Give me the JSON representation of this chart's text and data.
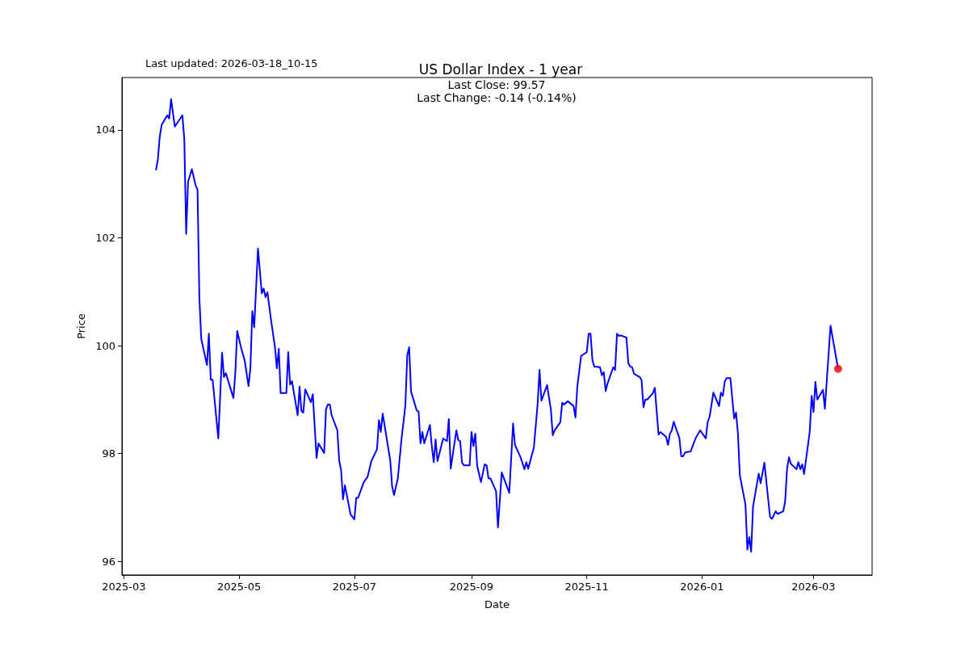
{
  "chart_data": {
    "type": "line",
    "title": "US Dollar Index - 1 year",
    "xlabel": "Date",
    "ylabel": "Price",
    "annotations": [
      "Last updated: 2026-03-18_10-15",
      "Last Close: 99.57",
      "Last Change: -0.14 (-0.14%)"
    ],
    "xlim": [
      "2025-02-28",
      "2026-04-01"
    ],
    "xticks": [
      {
        "value": "2025-03",
        "label": "2025-03"
      },
      {
        "value": "2025-05",
        "label": "2025-05"
      },
      {
        "value": "2025-07",
        "label": "2025-07"
      },
      {
        "value": "2025-09",
        "label": "2025-09"
      },
      {
        "value": "2025-11",
        "label": "2025-11"
      },
      {
        "value": "2026-01",
        "label": "2026-01"
      },
      {
        "value": "2026-03",
        "label": "2026-03"
      }
    ],
    "ylim": [
      95.75,
      104.97
    ],
    "yticks": [
      96,
      98,
      100,
      102,
      104
    ],
    "grid": false,
    "line_style": "solid",
    "series": [
      {
        "color": "#0000ff",
        "x": [
          "2025-03-18",
          "2025-03-19",
          "2025-03-20",
          "2025-03-21",
          "2025-03-24",
          "2025-03-25",
          "2025-03-26",
          "2025-03-28",
          "2025-04-01",
          "2025-04-02",
          "2025-04-03",
          "2025-04-04",
          "2025-04-06",
          "2025-04-08",
          "2025-04-09",
          "2025-04-10",
          "2025-04-11",
          "2025-04-14",
          "2025-04-15",
          "2025-04-16",
          "2025-04-17",
          "2025-04-20",
          "2025-04-22",
          "2025-04-23",
          "2025-04-24",
          "2025-04-28",
          "2025-04-29",
          "2025-04-30",
          "2025-05-02",
          "2025-05-04",
          "2025-05-06",
          "2025-05-07",
          "2025-05-08",
          "2025-05-09",
          "2025-05-11",
          "2025-05-13",
          "2025-05-14",
          "2025-05-15",
          "2025-05-16",
          "2025-05-18",
          "2025-05-20",
          "2025-05-21",
          "2025-05-22",
          "2025-05-23",
          "2025-05-26",
          "2025-05-27",
          "2025-05-28",
          "2025-05-29",
          "2025-06-01",
          "2025-06-02",
          "2025-06-03",
          "2025-06-04",
          "2025-06-05",
          "2025-06-08",
          "2025-06-09",
          "2025-06-11",
          "2025-06-12",
          "2025-06-15",
          "2025-06-16",
          "2025-06-17",
          "2025-06-18",
          "2025-06-19",
          "2025-06-22",
          "2025-06-23",
          "2025-06-24",
          "2025-06-25",
          "2025-06-26",
          "2025-06-29",
          "2025-07-01",
          "2025-07-02",
          "2025-07-03",
          "2025-07-06",
          "2025-07-08",
          "2025-07-10",
          "2025-07-13",
          "2025-07-14",
          "2025-07-15",
          "2025-07-16",
          "2025-07-20",
          "2025-07-21",
          "2025-07-22",
          "2025-07-24",
          "2025-07-26",
          "2025-07-28",
          "2025-07-29",
          "2025-07-30",
          "2025-07-31",
          "2025-08-03",
          "2025-08-04",
          "2025-08-05",
          "2025-08-06",
          "2025-08-07",
          "2025-08-10",
          "2025-08-11",
          "2025-08-12",
          "2025-08-13",
          "2025-08-14",
          "2025-08-17",
          "2025-08-19",
          "2025-08-20",
          "2025-08-21",
          "2025-08-24",
          "2025-08-25",
          "2025-08-26",
          "2025-08-27",
          "2025-08-28",
          "2025-08-31",
          "2025-09-01",
          "2025-09-02",
          "2025-09-03",
          "2025-09-04",
          "2025-09-06",
          "2025-09-08",
          "2025-09-09",
          "2025-09-10",
          "2025-09-11",
          "2025-09-14",
          "2025-09-15",
          "2025-09-17",
          "2025-09-21",
          "2025-09-23",
          "2025-09-24",
          "2025-09-27",
          "2025-09-29",
          "2025-09-30",
          "2025-10-01",
          "2025-10-04",
          "2025-10-06",
          "2025-10-07",
          "2025-10-08",
          "2025-10-11",
          "2025-10-13",
          "2025-10-14",
          "2025-10-15",
          "2025-10-18",
          "2025-10-19",
          "2025-10-20",
          "2025-10-22",
          "2025-10-25",
          "2025-10-26",
          "2025-10-27",
          "2025-10-29",
          "2025-11-01",
          "2025-11-02",
          "2025-11-03",
          "2025-11-04",
          "2025-11-05",
          "2025-11-08",
          "2025-11-09",
          "2025-11-10",
          "2025-11-11",
          "2025-11-12",
          "2025-11-15",
          "2025-11-16",
          "2025-11-17",
          "2025-11-18",
          "2025-11-19",
          "2025-11-22",
          "2025-11-23",
          "2025-11-24",
          "2025-11-25",
          "2025-11-26",
          "2025-11-29",
          "2025-11-30",
          "2025-12-01",
          "2025-12-02",
          "2025-12-03",
          "2025-12-06",
          "2025-12-07",
          "2025-12-09",
          "2025-12-10",
          "2025-12-11",
          "2025-12-13",
          "2025-12-14",
          "2025-12-15",
          "2025-12-16",
          "2025-12-17",
          "2025-12-20",
          "2025-12-21",
          "2025-12-22",
          "2025-12-23",
          "2025-12-26",
          "2025-12-28",
          "2025-12-29",
          "2025-12-31",
          "2026-01-03",
          "2026-01-04",
          "2026-01-05",
          "2026-01-07",
          "2026-01-10",
          "2026-01-11",
          "2026-01-12",
          "2026-01-13",
          "2026-01-14",
          "2026-01-16",
          "2026-01-18",
          "2026-01-19",
          "2026-01-20",
          "2026-01-21",
          "2026-01-24",
          "2026-01-25",
          "2026-01-26",
          "2026-01-27",
          "2026-01-28",
          "2026-01-31",
          "2026-02-01",
          "2026-02-03",
          "2026-02-06",
          "2026-02-07",
          "2026-02-09",
          "2026-02-10",
          "2026-02-13",
          "2026-02-14",
          "2026-02-15",
          "2026-02-16",
          "2026-02-17",
          "2026-02-20",
          "2026-02-21",
          "2026-02-22",
          "2026-02-23",
          "2026-02-24",
          "2026-02-27",
          "2026-02-28",
          "2026-03-01",
          "2026-03-02",
          "2026-03-03",
          "2026-03-06",
          "2026-03-07",
          "2026-03-10",
          "2026-03-14"
        ],
        "values": [
          103.25,
          103.45,
          103.87,
          104.09,
          104.27,
          104.21,
          104.57,
          104.06,
          104.27,
          103.84,
          102.07,
          103.04,
          103.27,
          102.97,
          102.89,
          100.87,
          100.12,
          99.64,
          100.22,
          99.37,
          99.37,
          98.28,
          99.87,
          99.42,
          99.49,
          99.03,
          99.49,
          100.27,
          99.97,
          99.72,
          99.25,
          99.6,
          100.64,
          100.34,
          101.8,
          100.97,
          101.06,
          100.9,
          100.99,
          100.45,
          99.97,
          99.58,
          99.94,
          99.12,
          99.12,
          99.88,
          99.28,
          99.34,
          98.71,
          99.24,
          98.79,
          98.76,
          99.19,
          98.95,
          99.1,
          97.92,
          98.19,
          98.01,
          98.82,
          98.91,
          98.91,
          98.71,
          98.43,
          97.86,
          97.69,
          97.15,
          97.41,
          96.87,
          96.78,
          97.18,
          97.18,
          97.47,
          97.57,
          97.86,
          98.08,
          98.62,
          98.4,
          98.74,
          97.87,
          97.39,
          97.23,
          97.54,
          98.28,
          98.89,
          99.82,
          99.97,
          99.15,
          98.8,
          98.78,
          98.19,
          98.4,
          98.19,
          98.53,
          98.13,
          97.84,
          98.26,
          97.86,
          98.28,
          98.23,
          98.64,
          97.72,
          98.43,
          98.25,
          98.23,
          97.83,
          97.78,
          97.78,
          98.4,
          98.14,
          98.37,
          97.77,
          97.47,
          97.8,
          97.78,
          97.54,
          97.54,
          97.3,
          96.63,
          97.65,
          97.27,
          98.56,
          98.16,
          97.93,
          97.71,
          97.84,
          97.72,
          98.11,
          98.92,
          99.55,
          98.98,
          99.27,
          98.82,
          98.34,
          98.43,
          98.58,
          98.94,
          98.91,
          98.97,
          98.88,
          98.67,
          99.24,
          99.81,
          99.88,
          100.22,
          100.22,
          99.73,
          99.61,
          99.6,
          99.45,
          99.51,
          99.16,
          99.3,
          99.6,
          99.55,
          100.22,
          100.18,
          100.19,
          100.15,
          99.67,
          99.61,
          99.6,
          99.48,
          99.42,
          99.36,
          98.86,
          99.0,
          99.0,
          99.12,
          99.22,
          98.35,
          98.4,
          98.37,
          98.31,
          98.16,
          98.37,
          98.43,
          98.59,
          98.29,
          97.95,
          97.95,
          98.02,
          98.04,
          98.23,
          98.31,
          98.43,
          98.28,
          98.59,
          98.68,
          99.13,
          98.88,
          99.13,
          99.07,
          99.33,
          99.4,
          99.4,
          98.65,
          98.76,
          98.37,
          97.6,
          97.05,
          96.22,
          96.45,
          96.18,
          97.02,
          97.63,
          97.45,
          97.83,
          96.82,
          96.79,
          96.93,
          96.88,
          96.93,
          97.12,
          97.72,
          97.93,
          97.81,
          97.71,
          97.84,
          97.71,
          97.8,
          97.62,
          98.4,
          99.07,
          98.77,
          99.33,
          99.0,
          99.18,
          98.83,
          100.37,
          99.57
        ]
      },
      {
        "type": "scatter",
        "color": "#ff0000",
        "x": [
          "2026-03-14"
        ],
        "values": [
          99.57
        ]
      }
    ]
  }
}
